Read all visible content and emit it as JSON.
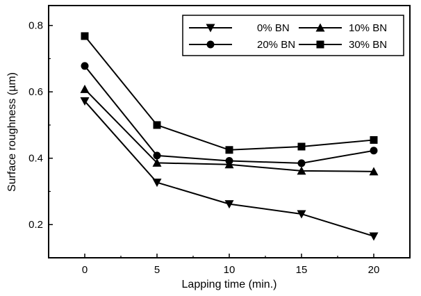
{
  "chart_data": {
    "type": "line",
    "title": "",
    "xlabel": "Lapping time (min.)",
    "ylabel": "Surface roughness (µm)",
    "x": [
      0,
      5,
      10,
      15,
      20
    ],
    "x_ticks": [
      "0",
      "5",
      "10",
      "15",
      "20"
    ],
    "y_ticks": [
      "0.2",
      "0.4",
      "0.6",
      "0.8"
    ],
    "xlim": [
      -2.5,
      22.5
    ],
    "ylim": [
      0.1,
      0.86
    ],
    "legend_position": "top-right",
    "series": [
      {
        "name": "0% BN",
        "marker": "triangle-down",
        "values": [
          0.572,
          0.327,
          0.262,
          0.232,
          0.165
        ]
      },
      {
        "name": "10% BN",
        "marker": "triangle-up",
        "values": [
          0.608,
          0.386,
          0.381,
          0.362,
          0.36
        ]
      },
      {
        "name": "20% BN",
        "marker": "circle",
        "values": [
          0.678,
          0.408,
          0.392,
          0.385,
          0.423
        ]
      },
      {
        "name": "30% BN",
        "marker": "square",
        "values": [
          0.768,
          0.5,
          0.425,
          0.435,
          0.455
        ]
      }
    ],
    "colors": {
      "line": "#000000",
      "marker": "#000000"
    }
  }
}
